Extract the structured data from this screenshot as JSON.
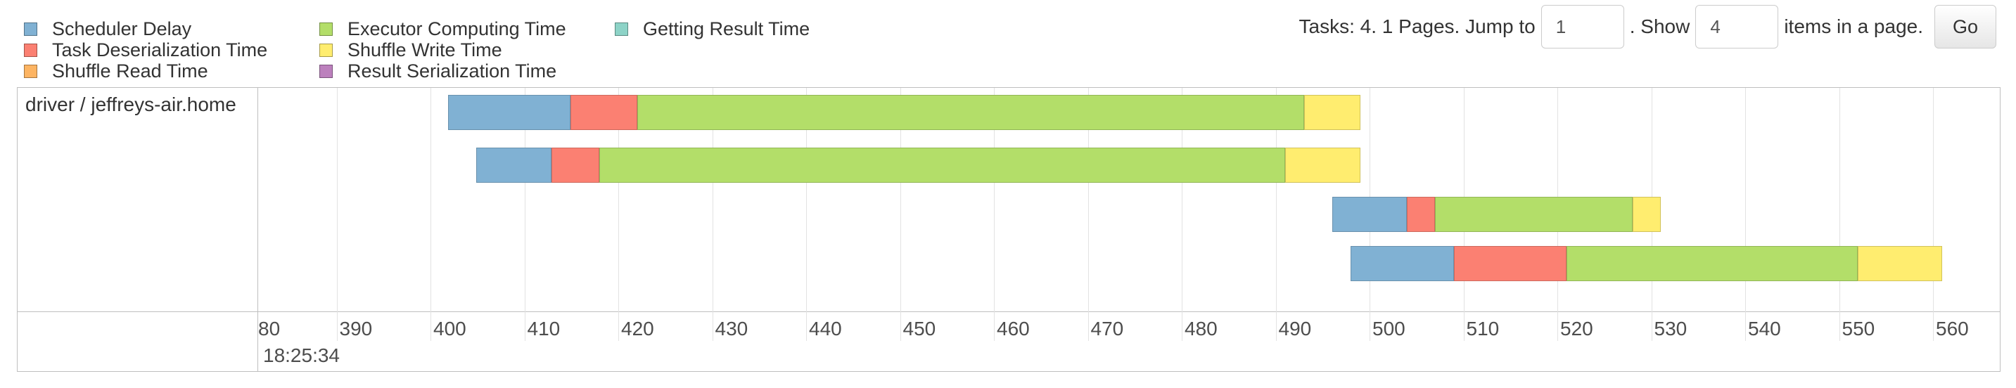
{
  "legend": {
    "items": [
      {
        "label": "Scheduler Delay",
        "color": "#80b1d3"
      },
      {
        "label": "Task Deserialization Time",
        "color": "#fb8072"
      },
      {
        "label": "Shuffle Read Time",
        "color": "#fdb462"
      },
      {
        "label": "Executor Computing Time",
        "color": "#b3de69"
      },
      {
        "label": "Shuffle Write Time",
        "color": "#ffed6f"
      },
      {
        "label": "Result Serialization Time",
        "color": "#bc80bd"
      },
      {
        "label": "Getting Result Time",
        "color": "#8dd3c7"
      }
    ]
  },
  "pager": {
    "tasks_text": "Tasks: 4. 1 Pages. Jump to",
    "page_value": "1",
    "show_text": ". Show",
    "items_value": "4",
    "items_text": "items in a page.",
    "go_label": "Go"
  },
  "timeline": {
    "group_label": "driver / jeffreys-air.home",
    "axis_ticks": [
      "80",
      "390",
      "400",
      "410",
      "420",
      "430",
      "440",
      "450",
      "460",
      "470",
      "480",
      "490",
      "500",
      "510",
      "520",
      "530",
      "540",
      "550",
      "560"
    ],
    "axis_minor_label": "18:25:34",
    "tasks": [
      {
        "segments": [
          {
            "name": "Scheduler Delay",
            "start": 401.9,
            "end": 414.9
          },
          {
            "name": "Task Deserialization Time",
            "start": 414.9,
            "end": 422.0
          },
          {
            "name": "Executor Computing Time",
            "start": 422.0,
            "end": 493.0
          },
          {
            "name": "Shuffle Write Time",
            "start": 493.0,
            "end": 499.0
          }
        ]
      },
      {
        "segments": [
          {
            "name": "Scheduler Delay",
            "start": 404.9,
            "end": 412.9
          },
          {
            "name": "Task Deserialization Time",
            "start": 412.9,
            "end": 418.0
          },
          {
            "name": "Executor Computing Time",
            "start": 418.0,
            "end": 491.0
          },
          {
            "name": "Shuffle Write Time",
            "start": 491.0,
            "end": 499.0
          }
        ]
      },
      {
        "segments": [
          {
            "name": "Scheduler Delay",
            "start": 496.0,
            "end": 504.0
          },
          {
            "name": "Task Deserialization Time",
            "start": 504.0,
            "end": 507.0
          },
          {
            "name": "Executor Computing Time",
            "start": 507.0,
            "end": 528.0
          },
          {
            "name": "Shuffle Write Time",
            "start": 528.0,
            "end": 531.0
          }
        ]
      },
      {
        "segments": [
          {
            "name": "Scheduler Delay",
            "start": 498.0,
            "end": 509.0
          },
          {
            "name": "Task Deserialization Time",
            "start": 509.0,
            "end": 521.0
          },
          {
            "name": "Executor Computing Time",
            "start": 521.0,
            "end": 552.0
          },
          {
            "name": "Shuffle Write Time",
            "start": 552.0,
            "end": 561.0
          }
        ]
      }
    ]
  }
}
